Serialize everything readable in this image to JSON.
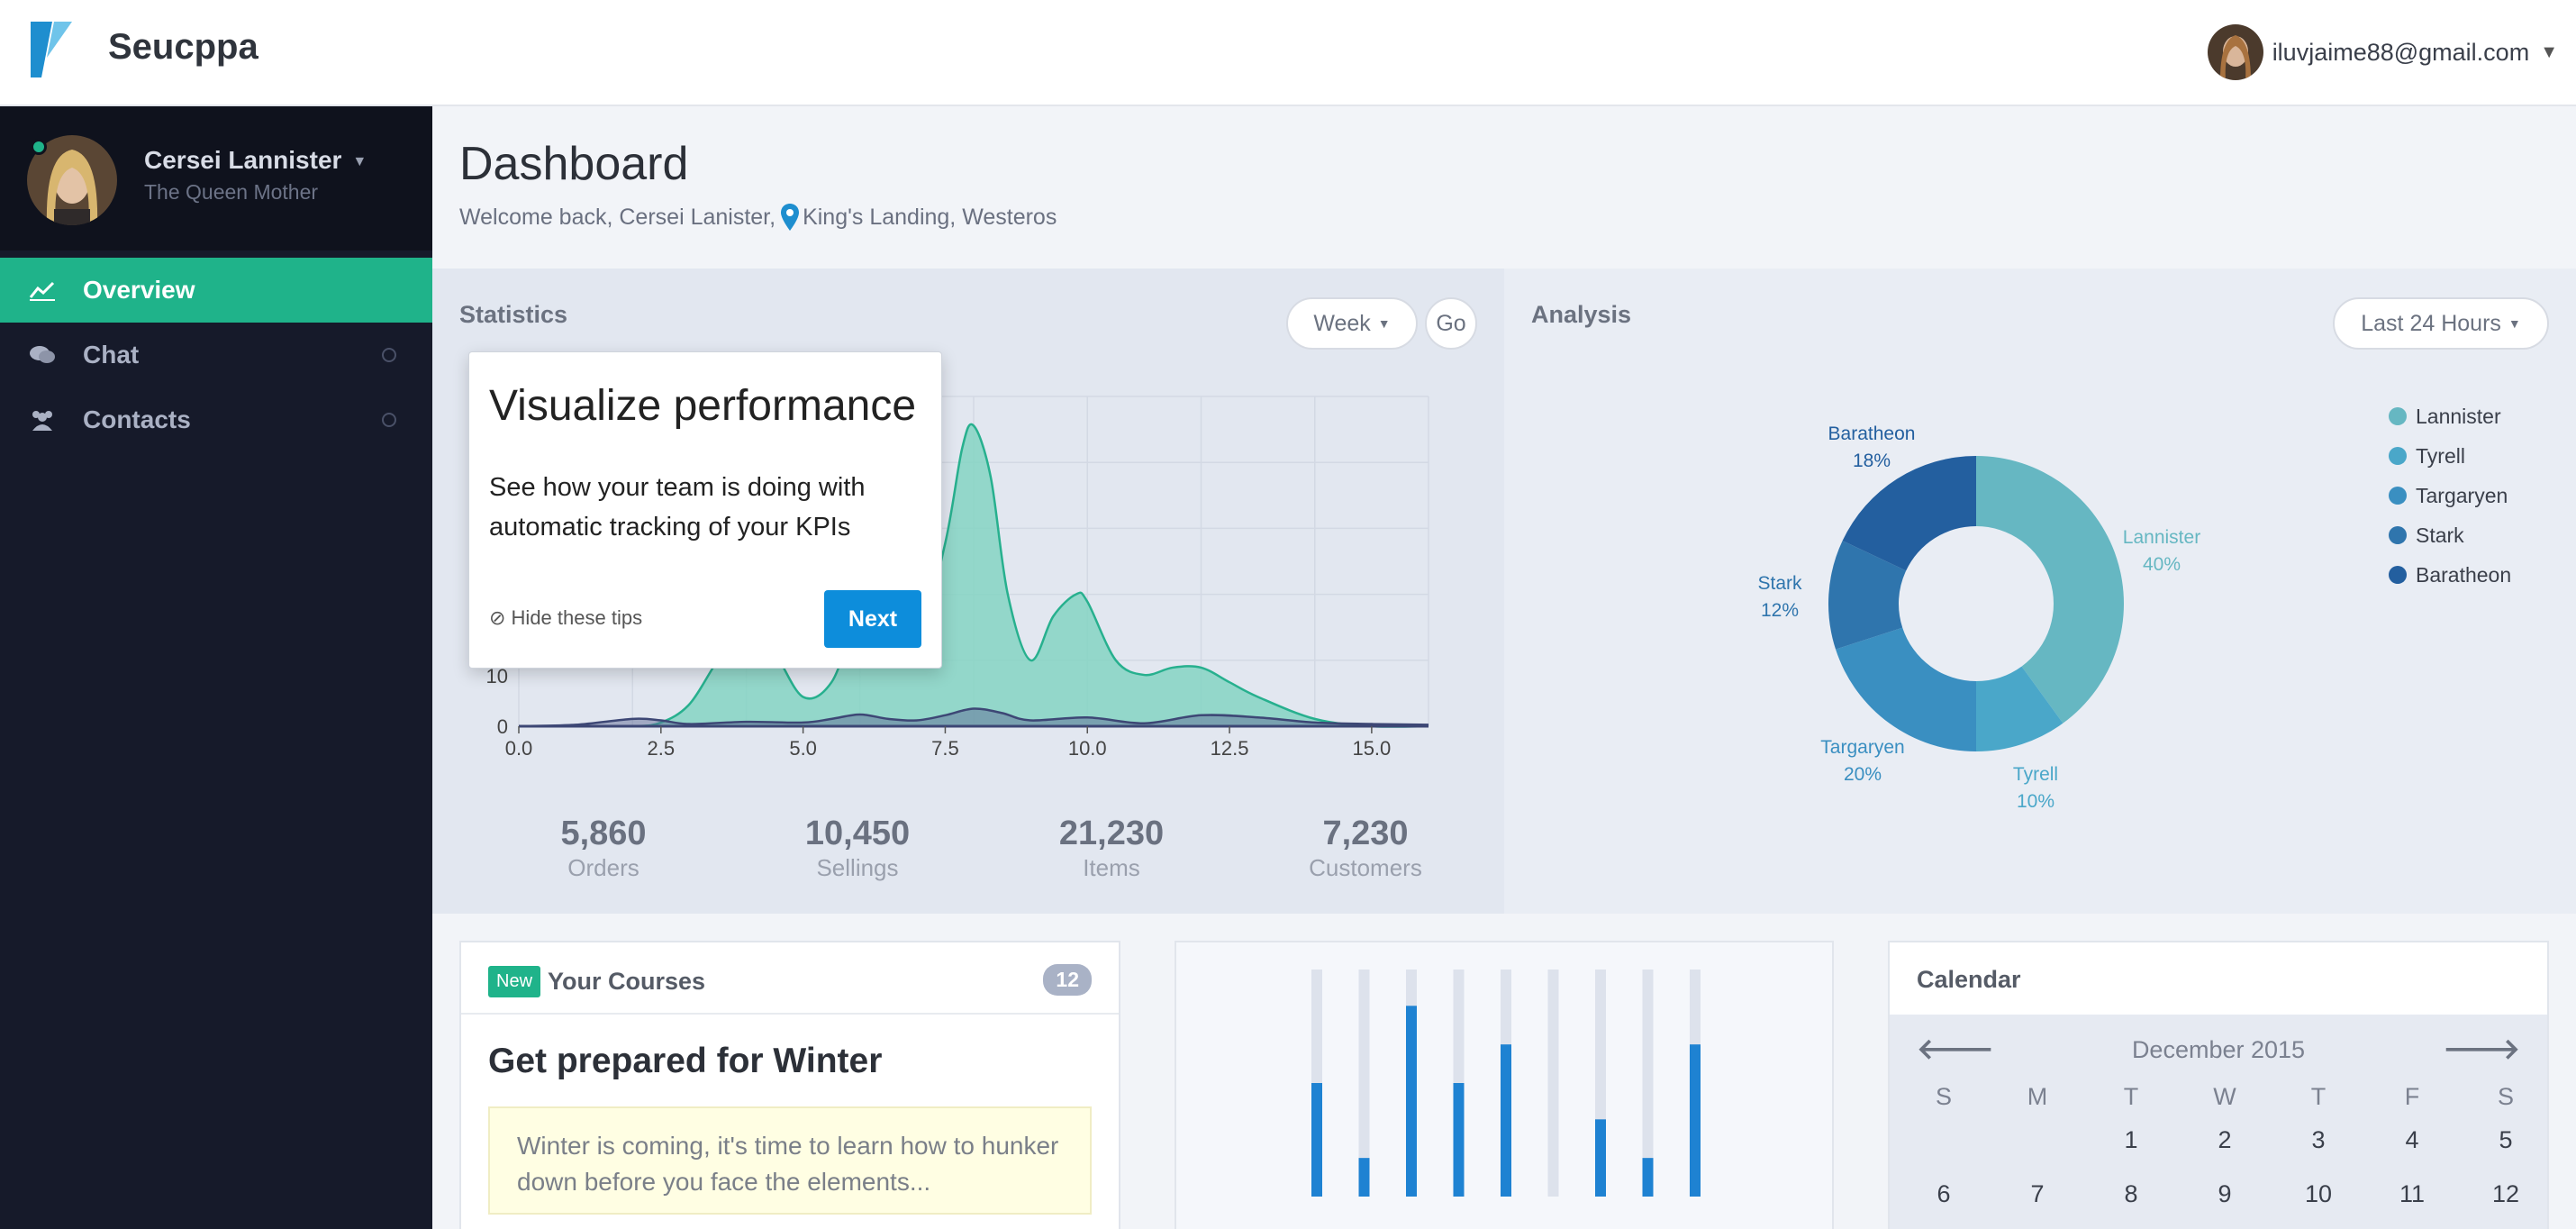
{
  "app": {
    "brand": "Seucppa"
  },
  "topbar": {
    "email": "iluvjaime88@gmail.com"
  },
  "sidebar": {
    "profile": {
      "name": "Cersei Lannister",
      "title": "The Queen Mother"
    },
    "items": [
      {
        "label": "Overview",
        "icon": "trend-line-icon",
        "active": true
      },
      {
        "label": "Chat",
        "icon": "chat-bubbles-icon",
        "active": false
      },
      {
        "label": "Contacts",
        "icon": "users-icon",
        "active": false
      }
    ]
  },
  "header": {
    "title": "Dashboard",
    "welcome": "Welcome back, Cersei Lanister,",
    "location": "King's Landing, Westeros"
  },
  "statistics": {
    "title": "Statistics",
    "range": "Week",
    "go": "Go",
    "y_tick_labels": [
      "10",
      "0"
    ],
    "summary": [
      {
        "value": "5,860",
        "label": "Orders"
      },
      {
        "value": "10,450",
        "label": "Sellings"
      },
      {
        "value": "21,230",
        "label": "Items"
      },
      {
        "value": "7,230",
        "label": "Customers"
      }
    ]
  },
  "tip": {
    "title": "Visualize performance",
    "body": "See how your team is doing with automatic tracking of your KPIs",
    "hide": "Hide these tips",
    "next": "Next"
  },
  "analysis": {
    "title": "Analysis",
    "range": "Last 24 Hours"
  },
  "courses": {
    "badge": "New",
    "title": "Your Courses",
    "count": "12",
    "heading": "Get prepared for Winter",
    "note": "Winter is coming, it's time to learn how to hunker down before you face the elements..."
  },
  "calendar": {
    "title": "Calendar",
    "month": "December 2015",
    "weekdays": [
      "S",
      "M",
      "T",
      "W",
      "T",
      "F",
      "S"
    ],
    "week1": [
      "",
      "",
      "1",
      "2",
      "3",
      "4",
      "5"
    ],
    "week2": [
      "6",
      "7",
      "8",
      "9",
      "10",
      "11",
      "12"
    ]
  },
  "chart_data": [
    {
      "type": "area",
      "title": "",
      "x_ticks": [
        0.0,
        2.5,
        5.0,
        7.5,
        10.0,
        12.5,
        15.0
      ],
      "x_tick_labels": [
        "0.0",
        "2.5",
        "5.0",
        "7.5",
        "10.0",
        "12.5",
        "15.0"
      ],
      "xlim": [
        0,
        16
      ],
      "ylim": [
        0,
        45
      ],
      "grid": true,
      "series": [
        {
          "color": "#7fd3c0",
          "x": [
            0,
            1,
            2,
            2.5,
            3,
            3.5,
            4,
            4.5,
            5,
            5.5,
            6,
            6.5,
            7,
            7.5,
            7.8,
            8,
            8.3,
            8.6,
            9,
            9.4,
            9.8,
            10,
            10.5,
            11,
            11.5,
            12,
            12.5,
            13,
            14,
            15,
            16
          ],
          "y": [
            0,
            0,
            0,
            0.5,
            3,
            9,
            14,
            10,
            4,
            6,
            15,
            14,
            11,
            25,
            38,
            41,
            34,
            18,
            9,
            15,
            18,
            17,
            9,
            7,
            8,
            8,
            6,
            4,
            1,
            0,
            0
          ]
        },
        {
          "color": "#5f6b96",
          "x": [
            0,
            1,
            2,
            2.5,
            3,
            4,
            5,
            5.5,
            6,
            6.5,
            7,
            7.5,
            8,
            8.5,
            9,
            10,
            11,
            12,
            13,
            14,
            15,
            16
          ],
          "y": [
            0,
            0.2,
            1,
            0.8,
            0.3,
            0.6,
            0.5,
            1,
            1.6,
            1,
            0.8,
            1.5,
            2.4,
            1.8,
            0.8,
            1.2,
            0.4,
            1.5,
            1.2,
            0.5,
            0.3,
            0.2
          ]
        }
      ]
    },
    {
      "type": "pie",
      "title": "",
      "donut": true,
      "legend": "right",
      "series": [
        {
          "name": "Lannister",
          "value": 40,
          "color": "#66b7c2"
        },
        {
          "name": "Tyrell",
          "value": 10,
          "color": "#4aa7c9"
        },
        {
          "name": "Targaryen",
          "value": 20,
          "color": "#3a8fc1"
        },
        {
          "name": "Stark",
          "value": 12,
          "color": "#2f75ad"
        },
        {
          "name": "Baratheon",
          "value": 18,
          "color": "#235f9f"
        }
      ]
    },
    {
      "type": "bar",
      "title": "",
      "ylim": [
        0,
        100
      ],
      "values": [
        50,
        17,
        84,
        50,
        67,
        0,
        34,
        17,
        67
      ]
    }
  ]
}
